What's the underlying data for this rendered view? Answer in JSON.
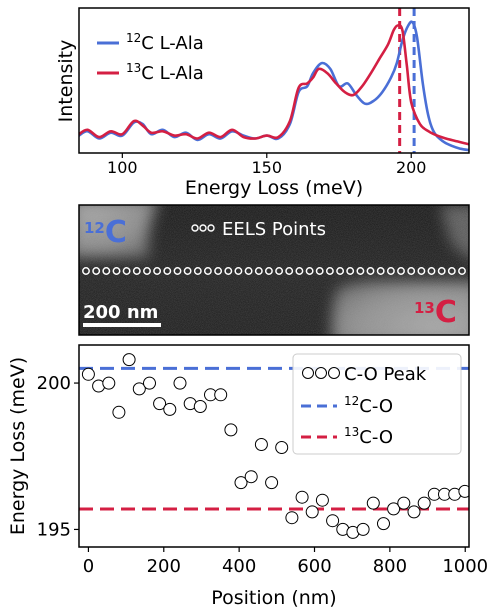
{
  "colors": {
    "c12": "#4a6fd6",
    "c13": "#d41f43",
    "image_dark": "#0c0c0c",
    "image_light": "#8e8e8e",
    "eels_point": "#ffffff"
  },
  "chart_data": [
    {
      "type": "line",
      "title": "",
      "xlabel": "Energy Loss (meV)",
      "ylabel": "Intensity",
      "xlim": [
        85,
        220
      ],
      "ylim": [
        0,
        1.0
      ],
      "x_ticks": [
        100,
        150,
        200
      ],
      "y_ticks": [],
      "grid": false,
      "legend": {
        "placement": "top-left",
        "entries": [
          {
            "sup": "12",
            "label": "C L-Ala"
          },
          {
            "sup": "13",
            "label": "C L-Ala"
          }
        ]
      },
      "vertical_lines": [
        {
          "series": "13",
          "x": 196.0,
          "style": "dashed"
        },
        {
          "series": "12",
          "x": 201.0,
          "style": "dashed"
        }
      ],
      "series": [
        {
          "name": "12C L-Ala",
          "x": [
            85,
            88,
            92,
            96,
            100,
            104,
            107,
            110,
            114,
            118,
            122,
            126,
            130,
            134,
            138,
            142,
            146,
            150,
            154,
            158,
            161,
            164,
            166,
            169,
            172,
            175,
            178,
            181,
            184,
            187,
            190,
            193,
            195,
            197,
            199,
            200.5,
            202,
            204,
            206,
            208,
            211,
            214,
            217,
            220
          ],
          "values": [
            0.12,
            0.15,
            0.1,
            0.14,
            0.12,
            0.21,
            0.2,
            0.13,
            0.16,
            0.11,
            0.14,
            0.09,
            0.13,
            0.1,
            0.15,
            0.12,
            0.1,
            0.12,
            0.1,
            0.2,
            0.42,
            0.46,
            0.55,
            0.62,
            0.58,
            0.46,
            0.48,
            0.4,
            0.34,
            0.36,
            0.42,
            0.52,
            0.62,
            0.78,
            0.88,
            0.9,
            0.8,
            0.48,
            0.25,
            0.14,
            0.08,
            0.05,
            0.03,
            0.02
          ]
        },
        {
          "name": "13C L-Ala",
          "x": [
            85,
            88,
            92,
            96,
            100,
            104,
            107,
            110,
            114,
            118,
            122,
            126,
            130,
            134,
            138,
            142,
            146,
            150,
            154,
            158,
            161,
            164,
            166,
            168,
            171,
            174,
            177,
            180,
            183,
            186,
            189,
            192,
            194,
            195.5,
            197,
            198.5,
            200,
            203,
            206,
            209,
            212,
            216,
            220
          ],
          "values": [
            0.13,
            0.16,
            0.11,
            0.15,
            0.13,
            0.22,
            0.19,
            0.14,
            0.15,
            0.12,
            0.13,
            0.1,
            0.14,
            0.11,
            0.16,
            0.11,
            0.1,
            0.12,
            0.11,
            0.22,
            0.45,
            0.48,
            0.52,
            0.58,
            0.55,
            0.48,
            0.42,
            0.4,
            0.46,
            0.55,
            0.65,
            0.75,
            0.85,
            0.88,
            0.84,
            0.6,
            0.35,
            0.2,
            0.15,
            0.12,
            0.1,
            0.08,
            0.06
          ]
        }
      ]
    },
    {
      "type": "image",
      "annotations": {
        "top_left_isotope": {
          "sup": "12",
          "label": "C"
        },
        "bottom_right_isotope": {
          "sup": "13",
          "label": "C"
        },
        "points_label": "EELS Points",
        "scale_bar": "200 nm"
      },
      "eels_point_count": 38,
      "scale_bar_fraction": 0.2
    },
    {
      "type": "scatter",
      "title": "",
      "xlabel": "Position (nm)",
      "ylabel": "Energy Loss (meV)",
      "xlim": [
        -25,
        1010
      ],
      "ylim": [
        194.4,
        201.3
      ],
      "x_ticks": [
        0,
        200,
        400,
        600,
        800,
        1000
      ],
      "y_ticks": [
        195,
        200
      ],
      "grid": false,
      "legend": {
        "placement": "top-right",
        "entries": [
          {
            "sup": "",
            "label": "C-O Peak",
            "marker": "circles"
          },
          {
            "sup": "12",
            "label": "C-O",
            "marker": "dashed-blue"
          },
          {
            "sup": "13",
            "label": "C-O",
            "marker": "dashed-red"
          }
        ]
      },
      "horizontal_lines": [
        {
          "series": "12",
          "y": 200.5,
          "style": "dashed"
        },
        {
          "series": "13",
          "y": 195.7,
          "style": "dashed"
        }
      ],
      "series": [
        {
          "name": "C-O Peak",
          "x": [
            0,
            27,
            54,
            81,
            108,
            135,
            162,
            189,
            216,
            243,
            270,
            297,
            324,
            351,
            378,
            405,
            432,
            459,
            486,
            513,
            540,
            567,
            594,
            621,
            648,
            675,
            702,
            729,
            756,
            783,
            810,
            837,
            864,
            891,
            918,
            945,
            972,
            999
          ],
          "values": [
            200.3,
            199.9,
            200.0,
            199.0,
            200.8,
            199.8,
            200.0,
            199.3,
            199.1,
            200.0,
            199.3,
            199.2,
            199.6,
            199.6,
            198.4,
            196.6,
            196.8,
            197.9,
            196.6,
            197.8,
            195.4,
            196.1,
            195.6,
            196.0,
            195.3,
            195.0,
            194.9,
            195.0,
            195.9,
            195.2,
            195.7,
            195.9,
            195.6,
            195.9,
            196.2,
            196.2,
            196.2,
            196.3
          ]
        }
      ]
    }
  ]
}
